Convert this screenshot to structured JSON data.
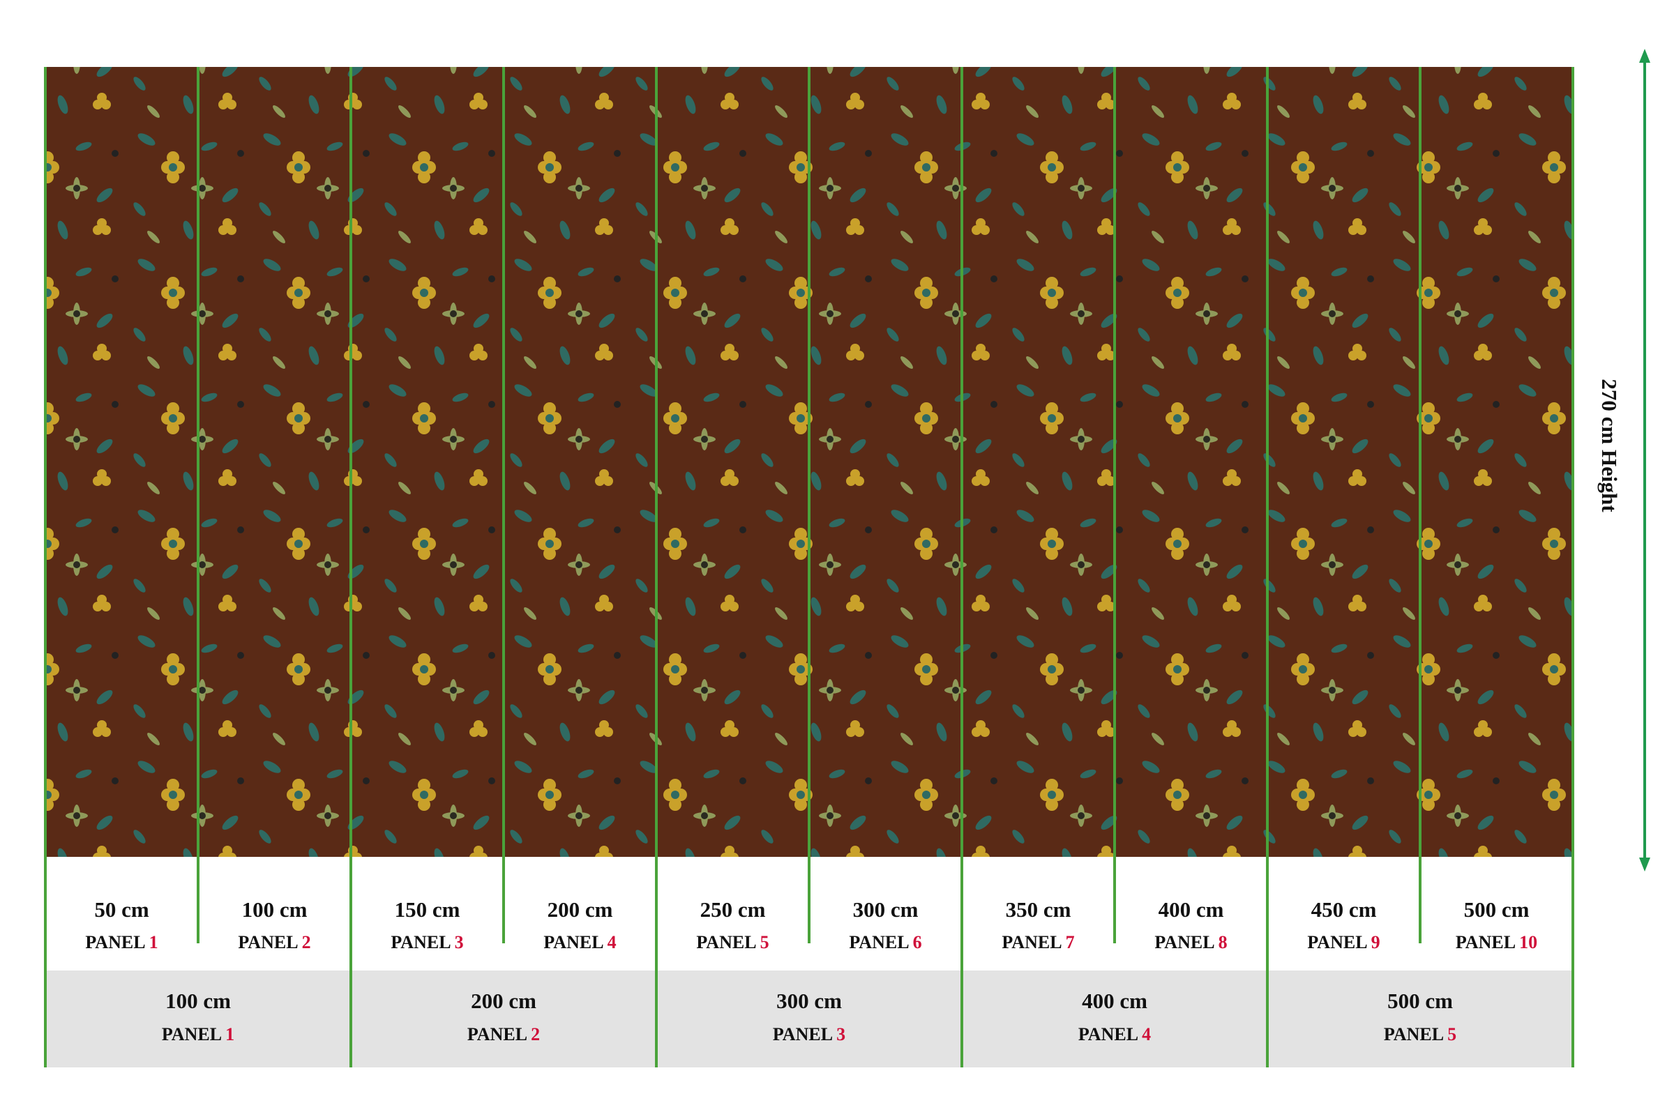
{
  "height_label": "270 cm Height",
  "small_panels": [
    {
      "width": "50 cm",
      "label": "PANEL",
      "number": 1
    },
    {
      "width": "100 cm",
      "label": "PANEL",
      "number": 2
    },
    {
      "width": "150 cm",
      "label": "PANEL",
      "number": 3
    },
    {
      "width": "200 cm",
      "label": "PANEL",
      "number": 4
    },
    {
      "width": "250 cm",
      "label": "PANEL",
      "number": 5
    },
    {
      "width": "300 cm",
      "label": "PANEL",
      "number": 6
    },
    {
      "width": "350 cm",
      "label": "PANEL",
      "number": 7
    },
    {
      "width": "400 cm",
      "label": "PANEL",
      "number": 8
    },
    {
      "width": "450 cm",
      "label": "PANEL",
      "number": 9
    },
    {
      "width": "500 cm",
      "label": "PANEL",
      "number": 10
    }
  ],
  "large_panels": [
    {
      "width": "100 cm",
      "label": "PANEL",
      "number": 1
    },
    {
      "width": "200 cm",
      "label": "PANEL",
      "number": 2
    },
    {
      "width": "300 cm",
      "label": "PANEL",
      "number": 3
    },
    {
      "width": "400 cm",
      "label": "PANEL",
      "number": 4
    },
    {
      "width": "500 cm",
      "label": "PANEL",
      "number": 5
    }
  ]
}
